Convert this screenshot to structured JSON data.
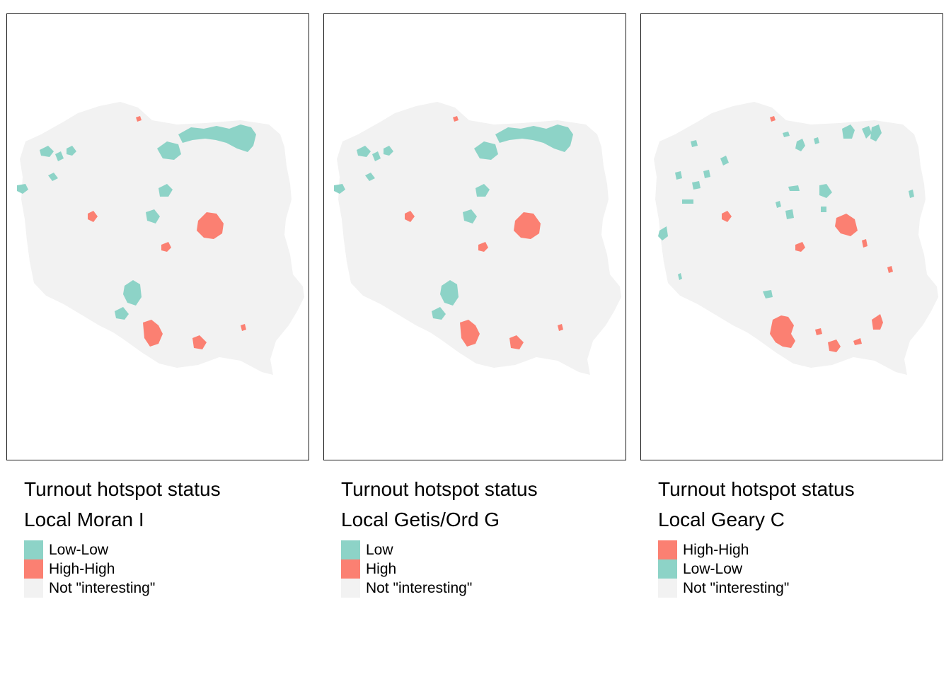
{
  "colors": {
    "low": "#8dd3c7",
    "high": "#fb8072",
    "neutral": "#f2f2f2"
  },
  "panels": [
    {
      "legend": {
        "title": "Turnout hotspot status",
        "subtitle": "Local Moran I",
        "items": [
          {
            "label": "Low-Low",
            "color": "#8dd3c7"
          },
          {
            "label": "High-High",
            "color": "#fb8072"
          },
          {
            "label": "Not \"interesting\"",
            "color": "#f2f2f2"
          }
        ]
      }
    },
    {
      "legend": {
        "title": "Turnout hotspot status",
        "subtitle": "Local Getis/Ord G",
        "items": [
          {
            "label": "Low",
            "color": "#8dd3c7"
          },
          {
            "label": "High",
            "color": "#fb8072"
          },
          {
            "label": "Not \"interesting\"",
            "color": "#f2f2f2"
          }
        ]
      }
    },
    {
      "legend": {
        "title": "Turnout hotspot status",
        "subtitle": "Local Geary C",
        "items": [
          {
            "label": "High-High",
            "color": "#fb8072"
          },
          {
            "label": "Low-Low",
            "color": "#8dd3c7"
          },
          {
            "label": "Not \"interesting\"",
            "color": "#f2f2f2"
          }
        ]
      }
    }
  ]
}
